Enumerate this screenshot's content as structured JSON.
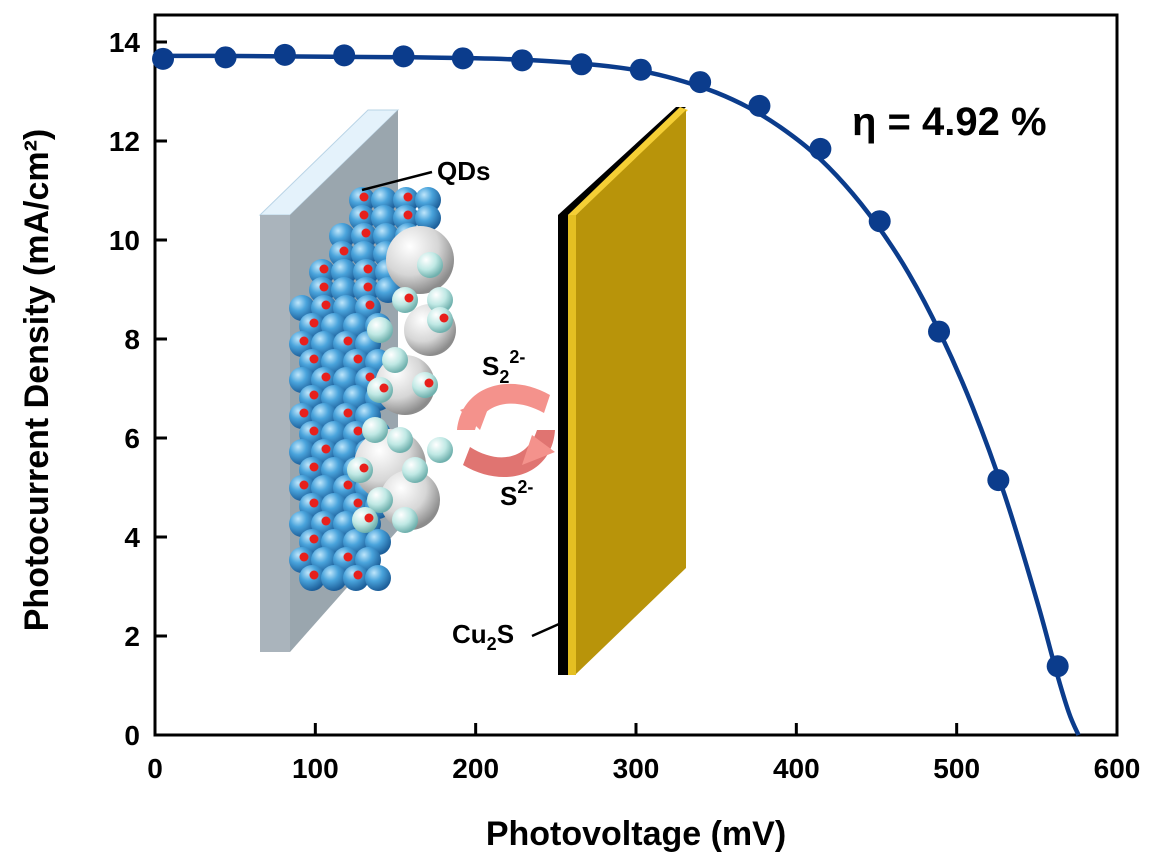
{
  "chart_data": {
    "type": "line",
    "xlabel": "Photovoltage (mV)",
    "ylabel": "Photocurrent Density (mA/cm²)",
    "xlim": [
      0,
      600
    ],
    "ylim": [
      0,
      14.5
    ],
    "xticks": [
      0,
      100,
      200,
      300,
      400,
      500,
      600
    ],
    "yticks": [
      0,
      2,
      4,
      6,
      8,
      10,
      12,
      14
    ],
    "grid": false,
    "curve": {
      "color": "#0b3c8c",
      "x": [
        0,
        40,
        80,
        120,
        160,
        200,
        230,
        260,
        290,
        310,
        330,
        350,
        370,
        390,
        410,
        430,
        450,
        470,
        490,
        510,
        530,
        550,
        562,
        570,
        576
      ],
      "y": [
        13.72,
        13.72,
        13.71,
        13.7,
        13.69,
        13.67,
        13.64,
        13.58,
        13.48,
        13.37,
        13.2,
        12.98,
        12.68,
        12.28,
        11.78,
        11.13,
        10.32,
        9.33,
        8.1,
        6.62,
        4.84,
        2.72,
        1.3,
        0.45,
        0.0
      ]
    },
    "series": [
      {
        "color": "#0b3c8c",
        "marker": "circle",
        "x": [
          5,
          44,
          81,
          118,
          155,
          192,
          229,
          266,
          303,
          340,
          377,
          415,
          452,
          489,
          526,
          563
        ],
        "y": [
          13.66,
          13.69,
          13.74,
          13.73,
          13.71,
          13.67,
          13.63,
          13.55,
          13.44,
          13.19,
          12.71,
          11.84,
          10.38,
          8.15,
          5.15,
          1.39
        ]
      }
    ],
    "annotations": {
      "efficiency": "η = 4.92 %"
    }
  },
  "inset": {
    "qds_label": "QDs",
    "s2_label": "S",
    "s2_sub": "2",
    "s2_sup": "2-",
    "s_label": "S",
    "s_sup": "2-",
    "cu2s_label": "Cu",
    "cu2s_sub": "2",
    "cu2s_end": "S",
    "colors": {
      "electrode_plate": "#aab4bc",
      "electrode_top": "#d8ecf8",
      "qd_sphere": "#4aa4dc",
      "qd_dot": "#e8201c",
      "tio2_sphere": "#d6d6d6",
      "counter_plate": "#b8940a",
      "counter_edge": "#f0c830",
      "arrows": "#f08a86"
    }
  }
}
